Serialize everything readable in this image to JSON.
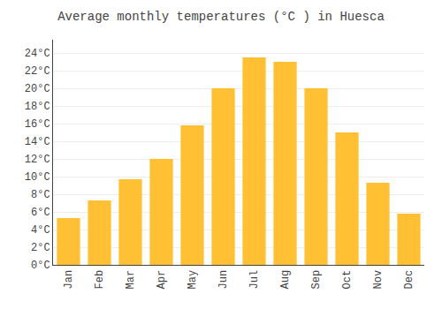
{
  "chart_data": {
    "type": "bar",
    "title": "Average monthly temperatures (°C ) in Huesca",
    "categories": [
      "Jan",
      "Feb",
      "Mar",
      "Apr",
      "May",
      "Jun",
      "Jul",
      "Aug",
      "Sep",
      "Oct",
      "Nov",
      "Dec"
    ],
    "values": [
      5.3,
      7.3,
      9.7,
      12.0,
      15.8,
      20.0,
      23.5,
      23.0,
      20.0,
      15.0,
      9.3,
      5.8
    ],
    "color": "#FFC033",
    "ylim": [
      0,
      25.5
    ],
    "yticks": [
      {
        "value": 0,
        "label": "0°C"
      },
      {
        "value": 2,
        "label": "2°C"
      },
      {
        "value": 4,
        "label": "4°C"
      },
      {
        "value": 6,
        "label": "6°C"
      },
      {
        "value": 8,
        "label": "8°C"
      },
      {
        "value": 10,
        "label": "10°C"
      },
      {
        "value": 12,
        "label": "12°C"
      },
      {
        "value": 14,
        "label": "14°C"
      },
      {
        "value": 16,
        "label": "16°C"
      },
      {
        "value": 18,
        "label": "18°C"
      },
      {
        "value": 20,
        "label": "20°C"
      },
      {
        "value": 22,
        "label": "22°C"
      },
      {
        "value": 24,
        "label": "24°C"
      }
    ],
    "grid": true
  }
}
